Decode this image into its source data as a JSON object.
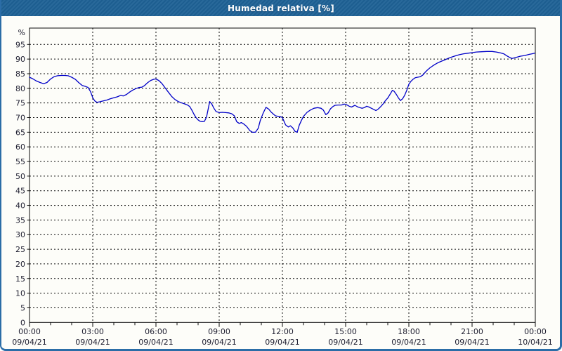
{
  "window": {
    "title": "Humedad relativa [%]"
  },
  "colors": {
    "titlebar": "#1e6195",
    "title_text": "#ffffff",
    "window_border": "#2b6da7",
    "plot_background": "#fdfdf9",
    "gridlines": "#0a0a0a",
    "labels": "#1c1c2e",
    "series_line": "#0000c8"
  },
  "chart_data": {
    "type": "line",
    "title": "Humedad relativa [%]",
    "xlabel": "",
    "ylabel": "%",
    "ylim": [
      0,
      97.6
    ],
    "xlim_hours": [
      0,
      24
    ],
    "grid": "dashed",
    "legend": "none",
    "y_ticks": [
      0,
      5,
      10,
      15,
      20,
      25,
      30,
      35,
      40,
      45,
      50,
      55,
      60,
      65,
      70,
      75,
      80,
      85,
      90,
      95
    ],
    "x_ticks": [
      {
        "hour": 0,
        "time": "00:00",
        "date": "09/04/21"
      },
      {
        "hour": 3,
        "time": "03:00",
        "date": "09/04/21"
      },
      {
        "hour": 6,
        "time": "06:00",
        "date": "09/04/21"
      },
      {
        "hour": 9,
        "time": "09:00",
        "date": "09/04/21"
      },
      {
        "hour": 12,
        "time": "12:00",
        "date": "09/04/21"
      },
      {
        "hour": 15,
        "time": "15:00",
        "date": "09/04/21"
      },
      {
        "hour": 18,
        "time": "18:00",
        "date": "09/04/21"
      },
      {
        "hour": 21,
        "time": "21:00",
        "date": "09/04/21"
      },
      {
        "hour": 24,
        "time": "00:00",
        "date": "10/04/21"
      }
    ],
    "series": [
      {
        "name": "Humedad relativa",
        "color": "#0000c8",
        "points_hour_value": [
          [
            0.0,
            83.8
          ],
          [
            0.17,
            83.2
          ],
          [
            0.33,
            82.5
          ],
          [
            0.5,
            82.0
          ],
          [
            0.67,
            81.6
          ],
          [
            0.83,
            82.0
          ],
          [
            1.0,
            83.2
          ],
          [
            1.17,
            84.0
          ],
          [
            1.33,
            84.3
          ],
          [
            1.5,
            84.4
          ],
          [
            1.67,
            84.4
          ],
          [
            1.83,
            84.3
          ],
          [
            2.0,
            83.8
          ],
          [
            2.17,
            83.1
          ],
          [
            2.33,
            82.0
          ],
          [
            2.5,
            81.0
          ],
          [
            2.67,
            80.6
          ],
          [
            2.78,
            80.3
          ],
          [
            2.9,
            78.8
          ],
          [
            3.0,
            76.8
          ],
          [
            3.1,
            75.7
          ],
          [
            3.2,
            75.2
          ],
          [
            3.33,
            75.4
          ],
          [
            3.5,
            75.7
          ],
          [
            3.67,
            76.0
          ],
          [
            3.83,
            76.4
          ],
          [
            4.0,
            76.8
          ],
          [
            4.17,
            77.1
          ],
          [
            4.33,
            77.6
          ],
          [
            4.45,
            77.4
          ],
          [
            4.6,
            77.9
          ],
          [
            4.75,
            78.7
          ],
          [
            4.9,
            79.4
          ],
          [
            5.05,
            79.9
          ],
          [
            5.2,
            80.3
          ],
          [
            5.33,
            80.4
          ],
          [
            5.45,
            80.9
          ],
          [
            5.6,
            81.9
          ],
          [
            5.75,
            82.7
          ],
          [
            5.9,
            83.1
          ],
          [
            6.0,
            83.2
          ],
          [
            6.15,
            82.6
          ],
          [
            6.3,
            81.5
          ],
          [
            6.45,
            80.0
          ],
          [
            6.6,
            78.6
          ],
          [
            6.75,
            77.2
          ],
          [
            6.9,
            76.2
          ],
          [
            7.05,
            75.5
          ],
          [
            7.2,
            75.1
          ],
          [
            7.35,
            74.7
          ],
          [
            7.5,
            74.3
          ],
          [
            7.6,
            73.8
          ],
          [
            7.7,
            72.6
          ],
          [
            7.8,
            71.2
          ],
          [
            7.9,
            70.0
          ],
          [
            8.0,
            69.2
          ],
          [
            8.1,
            68.7
          ],
          [
            8.2,
            68.6
          ],
          [
            8.3,
            68.7
          ],
          [
            8.4,
            70.2
          ],
          [
            8.48,
            73.0
          ],
          [
            8.55,
            75.5
          ],
          [
            8.65,
            74.6
          ],
          [
            8.75,
            73.2
          ],
          [
            8.85,
            72.1
          ],
          [
            9.0,
            71.7
          ],
          [
            9.15,
            71.8
          ],
          [
            9.3,
            71.7
          ],
          [
            9.45,
            71.6
          ],
          [
            9.6,
            71.3
          ],
          [
            9.72,
            70.6
          ],
          [
            9.83,
            68.6
          ],
          [
            9.95,
            68.0
          ],
          [
            10.05,
            68.3
          ],
          [
            10.17,
            67.8
          ],
          [
            10.3,
            67.0
          ],
          [
            10.45,
            65.6
          ],
          [
            10.58,
            65.0
          ],
          [
            10.72,
            65.0
          ],
          [
            10.85,
            66.3
          ],
          [
            10.95,
            69.0
          ],
          [
            11.08,
            71.4
          ],
          [
            11.22,
            73.5
          ],
          [
            11.35,
            72.9
          ],
          [
            11.45,
            72.0
          ],
          [
            11.57,
            71.2
          ],
          [
            11.67,
            70.6
          ],
          [
            11.8,
            70.4
          ],
          [
            11.92,
            70.3
          ],
          [
            12.0,
            70.0
          ],
          [
            12.15,
            67.5
          ],
          [
            12.28,
            66.8
          ],
          [
            12.38,
            67.2
          ],
          [
            12.5,
            66.4
          ],
          [
            12.6,
            65.3
          ],
          [
            12.7,
            65.0
          ],
          [
            12.8,
            67.4
          ],
          [
            12.9,
            69.0
          ],
          [
            13.0,
            70.4
          ],
          [
            13.17,
            71.8
          ],
          [
            13.33,
            72.6
          ],
          [
            13.5,
            73.2
          ],
          [
            13.67,
            73.4
          ],
          [
            13.83,
            73.2
          ],
          [
            13.94,
            72.6
          ],
          [
            14.06,
            71.0
          ],
          [
            14.17,
            71.6
          ],
          [
            14.28,
            73.0
          ],
          [
            14.4,
            73.8
          ],
          [
            14.5,
            74.2
          ],
          [
            14.65,
            74.3
          ],
          [
            14.8,
            74.3
          ],
          [
            14.94,
            74.6
          ],
          [
            15.05,
            74.4
          ],
          [
            15.17,
            73.9
          ],
          [
            15.28,
            73.6
          ],
          [
            15.44,
            74.2
          ],
          [
            15.56,
            73.7
          ],
          [
            15.67,
            73.4
          ],
          [
            15.78,
            73.2
          ],
          [
            15.89,
            73.4
          ],
          [
            16.0,
            73.9
          ],
          [
            16.11,
            73.6
          ],
          [
            16.22,
            73.2
          ],
          [
            16.33,
            72.8
          ],
          [
            16.44,
            72.4
          ],
          [
            16.56,
            73.0
          ],
          [
            16.67,
            73.8
          ],
          [
            16.78,
            74.7
          ],
          [
            16.89,
            75.8
          ],
          [
            17.0,
            76.7
          ],
          [
            17.11,
            78.0
          ],
          [
            17.22,
            79.3
          ],
          [
            17.3,
            79.0
          ],
          [
            17.4,
            78.0
          ],
          [
            17.5,
            76.8
          ],
          [
            17.6,
            75.8
          ],
          [
            17.7,
            76.4
          ],
          [
            17.8,
            77.6
          ],
          [
            17.9,
            79.3
          ],
          [
            18.0,
            81.4
          ],
          [
            18.1,
            82.4
          ],
          [
            18.2,
            83.1
          ],
          [
            18.3,
            83.6
          ],
          [
            18.42,
            83.8
          ],
          [
            18.55,
            84.0
          ],
          [
            18.67,
            84.6
          ],
          [
            18.8,
            85.7
          ],
          [
            18.9,
            86.4
          ],
          [
            19.0,
            87.0
          ],
          [
            19.12,
            87.6
          ],
          [
            19.25,
            88.2
          ],
          [
            19.4,
            88.8
          ],
          [
            19.55,
            89.3
          ],
          [
            19.7,
            89.7
          ],
          [
            19.85,
            90.2
          ],
          [
            20.0,
            90.6
          ],
          [
            20.2,
            91.1
          ],
          [
            20.4,
            91.5
          ],
          [
            20.6,
            91.8
          ],
          [
            20.8,
            92.0
          ],
          [
            21.0,
            92.2
          ],
          [
            21.2,
            92.4
          ],
          [
            21.45,
            92.5
          ],
          [
            21.7,
            92.6
          ],
          [
            21.95,
            92.6
          ],
          [
            22.15,
            92.4
          ],
          [
            22.35,
            92.1
          ],
          [
            22.5,
            91.8
          ],
          [
            22.65,
            91.1
          ],
          [
            22.8,
            90.5
          ],
          [
            22.9,
            90.2
          ],
          [
            23.0,
            90.4
          ],
          [
            23.15,
            90.7
          ],
          [
            23.3,
            91.0
          ],
          [
            23.5,
            91.2
          ],
          [
            23.7,
            91.6
          ],
          [
            23.85,
            91.8
          ],
          [
            23.97,
            92.0
          ]
        ]
      }
    ]
  }
}
